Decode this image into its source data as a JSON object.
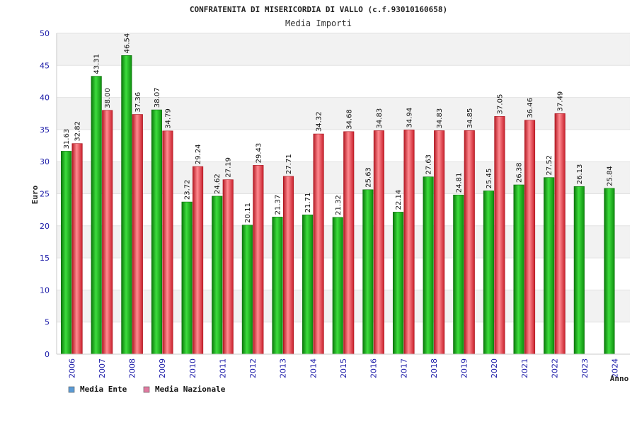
{
  "chart_data": {
    "type": "bar",
    "title": "CONFRATENITA DI MISERICORDIA DI VALLO (c.f.93010160658)",
    "subtitle": "Media Importi",
    "ylabel": "Euro",
    "xlabel": "Anno",
    "ylim": [
      0,
      50
    ],
    "yticks": [
      0,
      5,
      10,
      15,
      20,
      25,
      30,
      35,
      40,
      45,
      50
    ],
    "grid": true,
    "legend_position": "bottom-left",
    "categories": [
      "2006",
      "2007",
      "2008",
      "2009",
      "2010",
      "2011",
      "2012",
      "2013",
      "2014",
      "2015",
      "2016",
      "2017",
      "2018",
      "2019",
      "2020",
      "2021",
      "2022",
      "2023",
      "2024"
    ],
    "series": [
      {
        "name": "Media Ente",
        "legend_color": "#5b9bd5",
        "bar_color": "#1fb51f",
        "values": [
          31.63,
          43.31,
          46.54,
          38.07,
          23.72,
          24.62,
          20.11,
          21.37,
          21.71,
          21.32,
          25.63,
          22.14,
          27.63,
          24.81,
          25.45,
          26.38,
          27.52,
          26.13,
          25.84
        ],
        "labels": [
          "31.63",
          "43.31",
          "46.54",
          "38.07",
          "23.72",
          "24.62",
          "20.11",
          "21.37",
          "21.71",
          "21.32",
          "25.63",
          "22.14",
          "27.63",
          "24.81",
          "25.45",
          "26.38",
          "27.52",
          "26.13",
          "25.84"
        ]
      },
      {
        "name": "Media Nazionale",
        "legend_color": "#e07aa0",
        "bar_color": "#e8303a",
        "values": [
          32.82,
          38.0,
          37.36,
          34.79,
          29.24,
          27.19,
          29.43,
          27.71,
          34.32,
          34.68,
          34.83,
          34.94,
          34.83,
          34.85,
          37.05,
          36.46,
          37.49,
          null,
          null
        ],
        "labels": [
          "32.82",
          "38.00",
          "37.36",
          "34.79",
          "29.24",
          "27.19",
          "29.43",
          "27.71",
          "34.32",
          "34.68",
          "34.83",
          "34.94",
          "34.83",
          "34.85",
          "37.05",
          "36.46",
          "37.49",
          null,
          null
        ]
      }
    ]
  }
}
